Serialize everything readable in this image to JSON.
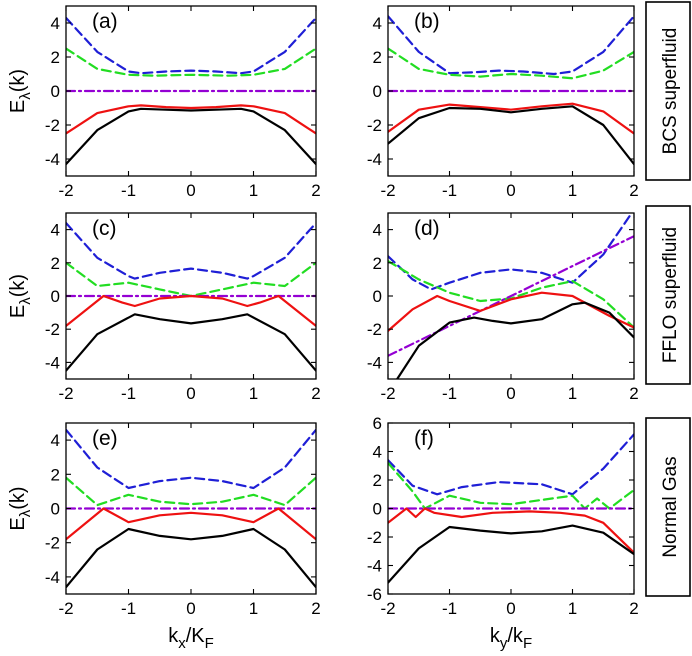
{
  "chart_data": [
    {
      "id": "a",
      "type": "line",
      "panel_label": "(a)",
      "xlim": [
        -2,
        2
      ],
      "ylim": [
        -5,
        5
      ],
      "xticks": [
        "-2",
        "-1",
        "0",
        "1",
        "2"
      ],
      "yticks": [
        "-4",
        "-2",
        "0",
        "2",
        "4"
      ],
      "ylabel_main": "E",
      "ylabel_sub": "λ",
      "ylabel_tail": "(k)",
      "xlabel_main": "",
      "xlabel_sub1": "",
      "xlabel_mid": "",
      "xlabel_sub2": "",
      "series": [
        {
          "name": "blue",
          "color": "#1f1fd6",
          "dash": "dash",
          "x": [
            -2,
            -1.5,
            -1,
            -0.8,
            -0.4,
            0,
            0.4,
            0.8,
            1,
            1.5,
            2
          ],
          "y": [
            4.3,
            2.3,
            1.15,
            1.05,
            1.15,
            1.2,
            1.15,
            1.05,
            1.15,
            2.3,
            4.3
          ]
        },
        {
          "name": "green",
          "color": "#22dd22",
          "dash": "dash",
          "x": [
            -2,
            -1.5,
            -1,
            -0.6,
            0,
            0.6,
            1,
            1.5,
            2
          ],
          "y": [
            2.5,
            1.3,
            0.95,
            0.9,
            0.95,
            0.9,
            0.95,
            1.3,
            2.5
          ]
        },
        {
          "name": "purple",
          "color": "#9400d3",
          "dash": "dashdot",
          "x": [
            -2,
            2
          ],
          "y": [
            0,
            0
          ]
        },
        {
          "name": "red",
          "color": "#ee1111",
          "dash": "solid",
          "x": [
            -2,
            -1.5,
            -1,
            -0.8,
            -0.4,
            0,
            0.4,
            0.8,
            1,
            1.5,
            2
          ],
          "y": [
            -2.5,
            -1.3,
            -0.9,
            -0.85,
            -0.95,
            -1.0,
            -0.95,
            -0.85,
            -0.9,
            -1.3,
            -2.5
          ]
        },
        {
          "name": "black",
          "color": "#000000",
          "dash": "solid",
          "x": [
            -2,
            -1.5,
            -1,
            -0.8,
            -0.4,
            0,
            0.4,
            0.8,
            1,
            1.5,
            2
          ],
          "y": [
            -4.3,
            -2.3,
            -1.2,
            -1.05,
            -1.1,
            -1.15,
            -1.1,
            -1.05,
            -1.2,
            -2.3,
            -4.3
          ]
        }
      ]
    },
    {
      "id": "b",
      "type": "line",
      "panel_label": "(b)",
      "xlim": [
        -2,
        2
      ],
      "ylim": [
        -5,
        5
      ],
      "xticks": [
        "-2",
        "-1",
        "0",
        "1",
        "2"
      ],
      "yticks": [
        "-4",
        "-2",
        "0",
        "2",
        "4"
      ],
      "ylabel_main": "",
      "ylabel_sub": "",
      "ylabel_tail": "",
      "xlabel_main": "",
      "xlabel_sub1": "",
      "xlabel_mid": "",
      "xlabel_sub2": "",
      "series": [
        {
          "name": "blue",
          "color": "#1f1fd6",
          "dash": "dash",
          "x": [
            -2,
            -1.5,
            -1,
            -0.6,
            -0.2,
            0.2,
            0.7,
            1,
            1.5,
            2
          ],
          "y": [
            4.4,
            2.3,
            1.05,
            1.1,
            1.2,
            1.15,
            1.0,
            1.15,
            2.3,
            4.4
          ]
        },
        {
          "name": "green",
          "color": "#22dd22",
          "dash": "dash",
          "x": [
            -2,
            -1.5,
            -1,
            -0.5,
            0,
            0.5,
            1,
            1.5,
            2
          ],
          "y": [
            2.5,
            1.3,
            0.95,
            0.85,
            1.0,
            0.9,
            0.75,
            1.2,
            2.3
          ]
        },
        {
          "name": "purple",
          "color": "#9400d3",
          "dash": "dashdot",
          "x": [
            -2,
            2
          ],
          "y": [
            0,
            0
          ]
        },
        {
          "name": "red",
          "color": "#ee1111",
          "dash": "solid",
          "x": [
            -2,
            -1.5,
            -1,
            -0.5,
            0,
            0.5,
            1,
            1.5,
            2
          ],
          "y": [
            -2.4,
            -1.1,
            -0.8,
            -0.95,
            -1.1,
            -0.9,
            -0.75,
            -1.2,
            -2.5
          ]
        },
        {
          "name": "black",
          "color": "#000000",
          "dash": "solid",
          "x": [
            -2,
            -1.5,
            -1,
            -0.5,
            0,
            0.5,
            1,
            1.5,
            2
          ],
          "y": [
            -3.1,
            -1.6,
            -1.0,
            -1.05,
            -1.25,
            -1.05,
            -0.9,
            -2.0,
            -4.3
          ]
        }
      ]
    },
    {
      "id": "c",
      "type": "line",
      "panel_label": "(c)",
      "xlim": [
        -2,
        2
      ],
      "ylim": [
        -5,
        5
      ],
      "xticks": [
        "-2",
        "-1",
        "0",
        "1",
        "2"
      ],
      "yticks": [
        "-4",
        "-2",
        "0",
        "2",
        "4"
      ],
      "ylabel_main": "E",
      "ylabel_sub": "λ",
      "ylabel_tail": "(k)",
      "xlabel_main": "",
      "xlabel_sub1": "",
      "xlabel_mid": "",
      "xlabel_sub2": "",
      "series": [
        {
          "name": "blue",
          "color": "#1f1fd6",
          "dash": "dash",
          "x": [
            -2,
            -1.5,
            -1,
            -0.9,
            -0.5,
            0,
            0.5,
            0.9,
            1,
            1.5,
            2
          ],
          "y": [
            4.4,
            2.3,
            1.2,
            1.05,
            1.4,
            1.65,
            1.4,
            1.05,
            1.2,
            2.3,
            4.4
          ]
        },
        {
          "name": "green",
          "color": "#22dd22",
          "dash": "dash",
          "x": [
            -2,
            -1.5,
            -1,
            -0.5,
            0,
            0.5,
            1,
            1.5,
            2
          ],
          "y": [
            2.0,
            0.6,
            0.8,
            0.4,
            0.0,
            0.4,
            0.8,
            0.6,
            2.0
          ]
        },
        {
          "name": "purple",
          "color": "#9400d3",
          "dash": "dashdot",
          "x": [
            -2,
            2
          ],
          "y": [
            0,
            0
          ]
        },
        {
          "name": "red",
          "color": "#ee1111",
          "dash": "solid",
          "x": [
            -2,
            -1.4,
            -1.1,
            -0.9,
            -0.5,
            0,
            0.5,
            0.9,
            1.1,
            1.4,
            2
          ],
          "y": [
            -1.8,
            0.0,
            -0.4,
            -0.6,
            -0.15,
            0.0,
            -0.15,
            -0.6,
            -0.4,
            0.0,
            -1.8
          ]
        },
        {
          "name": "black",
          "color": "#000000",
          "dash": "solid",
          "x": [
            -2,
            -1.5,
            -0.9,
            -0.5,
            0,
            0.5,
            0.9,
            1.5,
            2
          ],
          "y": [
            -4.5,
            -2.3,
            -1.1,
            -1.4,
            -1.65,
            -1.4,
            -1.1,
            -2.3,
            -4.5
          ]
        }
      ]
    },
    {
      "id": "d",
      "type": "line",
      "panel_label": "(d)",
      "xlim": [
        -2,
        2
      ],
      "ylim": [
        -5,
        5
      ],
      "xticks": [
        "-2",
        "-1",
        "0",
        "1",
        "2"
      ],
      "yticks": [
        "-4",
        "-2",
        "0",
        "2",
        "4"
      ],
      "ylabel_main": "",
      "ylabel_sub": "",
      "ylabel_tail": "",
      "xlabel_main": "",
      "xlabel_sub1": "",
      "xlabel_mid": "",
      "xlabel_sub2": "",
      "series": [
        {
          "name": "blue",
          "color": "#1f1fd6",
          "dash": "dash",
          "x": [
            -2,
            -1.6,
            -1.3,
            -1,
            -0.5,
            0,
            0.5,
            1,
            1.5,
            2
          ],
          "y": [
            2.4,
            1.0,
            0.4,
            0.8,
            1.4,
            1.6,
            1.4,
            0.8,
            2.5,
            5.2
          ]
        },
        {
          "name": "green",
          "color": "#22dd22",
          "dash": "dash",
          "x": [
            -2,
            -1.5,
            -1,
            -0.5,
            0,
            0.5,
            1,
            1.5,
            2
          ],
          "y": [
            2.1,
            1.0,
            0.2,
            -0.3,
            -0.15,
            0.5,
            0.9,
            -0.2,
            -1.9
          ]
        },
        {
          "name": "purple",
          "color": "#9400d3",
          "dash": "dashdot",
          "x": [
            -2,
            2
          ],
          "y": [
            -3.6,
            3.6
          ]
        },
        {
          "name": "red",
          "color": "#ee1111",
          "dash": "solid",
          "x": [
            -2,
            -1.6,
            -1.2,
            -1,
            -0.5,
            0,
            0.5,
            1,
            1.3,
            1.6,
            2
          ],
          "y": [
            -2.1,
            -0.8,
            0.0,
            -0.3,
            -0.9,
            -0.2,
            0.2,
            0.0,
            -0.6,
            -1.2,
            -1.9
          ]
        },
        {
          "name": "black",
          "color": "#000000",
          "dash": "solid",
          "x": [
            -1.85,
            -1.5,
            -1,
            -0.6,
            -0.3,
            0,
            0.5,
            1,
            1.2,
            1.6,
            2
          ],
          "y": [
            -5.0,
            -3.0,
            -1.6,
            -1.3,
            -1.5,
            -1.65,
            -1.4,
            -0.5,
            -0.4,
            -1.0,
            -2.5
          ]
        }
      ]
    },
    {
      "id": "e",
      "type": "line",
      "panel_label": "(e)",
      "xlim": [
        -2,
        2
      ],
      "ylim": [
        -5,
        5
      ],
      "xticks": [
        "-2",
        "-1",
        "0",
        "1",
        "2"
      ],
      "yticks": [
        "-4",
        "-2",
        "0",
        "2",
        "4"
      ],
      "ylabel_main": "E",
      "ylabel_sub": "λ",
      "ylabel_tail": "(k)",
      "xlabel_main": "k",
      "xlabel_sub1": "x",
      "xlabel_mid": "/K",
      "xlabel_sub2": "F",
      "series": [
        {
          "name": "blue",
          "color": "#1f1fd6",
          "dash": "dash",
          "x": [
            -2,
            -1.5,
            -1,
            -0.5,
            0,
            0.5,
            1,
            1.5,
            2
          ],
          "y": [
            4.6,
            2.4,
            1.2,
            1.6,
            1.8,
            1.6,
            1.2,
            2.4,
            4.6
          ]
        },
        {
          "name": "green",
          "color": "#22dd22",
          "dash": "dash",
          "x": [
            -2,
            -1.5,
            -1,
            -0.5,
            0,
            0.5,
            1,
            1.5,
            2
          ],
          "y": [
            1.8,
            0.2,
            0.8,
            0.4,
            0.25,
            0.4,
            0.8,
            0.2,
            1.8
          ]
        },
        {
          "name": "purple",
          "color": "#9400d3",
          "dash": "dashdot",
          "x": [
            -2,
            2
          ],
          "y": [
            0,
            0
          ]
        },
        {
          "name": "red",
          "color": "#ee1111",
          "dash": "solid",
          "x": [
            -2,
            -1.5,
            -1.4,
            -1,
            -0.5,
            0,
            0.5,
            1,
            1.4,
            1.5,
            2
          ],
          "y": [
            -1.8,
            -0.3,
            0.0,
            -0.8,
            -0.4,
            -0.25,
            -0.4,
            -0.8,
            0.0,
            -0.3,
            -1.8
          ]
        },
        {
          "name": "black",
          "color": "#000000",
          "dash": "solid",
          "x": [
            -2,
            -1.5,
            -1,
            -0.5,
            0,
            0.5,
            1,
            1.5,
            2
          ],
          "y": [
            -4.6,
            -2.4,
            -1.2,
            -1.6,
            -1.8,
            -1.6,
            -1.2,
            -2.4,
            -4.6
          ]
        }
      ]
    },
    {
      "id": "f",
      "type": "line",
      "panel_label": "(f)",
      "xlim": [
        -2,
        2
      ],
      "ylim": [
        -6,
        6
      ],
      "xticks": [
        "-2",
        "-1",
        "0",
        "1",
        "2"
      ],
      "yticks": [
        "-6",
        "-4",
        "-2",
        "0",
        "2",
        "4",
        "6"
      ],
      "ylabel_main": "",
      "ylabel_sub": "",
      "ylabel_tail": "",
      "xlabel_main": "k",
      "xlabel_sub1": "y",
      "xlabel_mid": "/k",
      "xlabel_sub2": "F",
      "series": [
        {
          "name": "blue",
          "color": "#1f1fd6",
          "dash": "dash",
          "x": [
            -2,
            -1.6,
            -1.2,
            -0.8,
            -0.2,
            0.5,
            1,
            1.5,
            2
          ],
          "y": [
            3.4,
            1.6,
            1.0,
            1.5,
            1.85,
            1.7,
            1.0,
            2.8,
            5.2
          ]
        },
        {
          "name": "green",
          "color": "#22dd22",
          "dash": "dash",
          "x": [
            -2,
            -1.6,
            -1.4,
            -1,
            -0.5,
            0,
            0.5,
            1,
            1.2,
            1.4,
            1.6,
            2
          ],
          "y": [
            3.2,
            1.2,
            0.0,
            0.9,
            0.4,
            0.3,
            0.6,
            0.9,
            0.0,
            0.7,
            0.0,
            1.3
          ]
        },
        {
          "name": "purple",
          "color": "#9400d3",
          "dash": "dashdot",
          "x": [
            -2,
            2
          ],
          "y": [
            0,
            0
          ]
        },
        {
          "name": "red",
          "color": "#ee1111",
          "dash": "solid",
          "x": [
            -2,
            -1.7,
            -1.55,
            -1.4,
            -1.25,
            -0.8,
            -0.3,
            0.3,
            0.8,
            1.2,
            1.5,
            2
          ],
          "y": [
            -1.0,
            0.0,
            -0.6,
            0.0,
            -0.3,
            -0.6,
            -0.3,
            -0.2,
            -0.3,
            -0.5,
            -1.0,
            -3.1
          ]
        },
        {
          "name": "black",
          "color": "#000000",
          "dash": "solid",
          "x": [
            -2,
            -1.5,
            -1,
            -0.5,
            0,
            0.5,
            1,
            1.5,
            2
          ],
          "y": [
            -5.2,
            -2.8,
            -1.3,
            -1.55,
            -1.75,
            -1.6,
            -1.2,
            -1.7,
            -3.2
          ]
        }
      ]
    }
  ],
  "row_labels": [
    "BCS superfluid",
    "FFLO superfluid",
    "Normal Gas"
  ]
}
